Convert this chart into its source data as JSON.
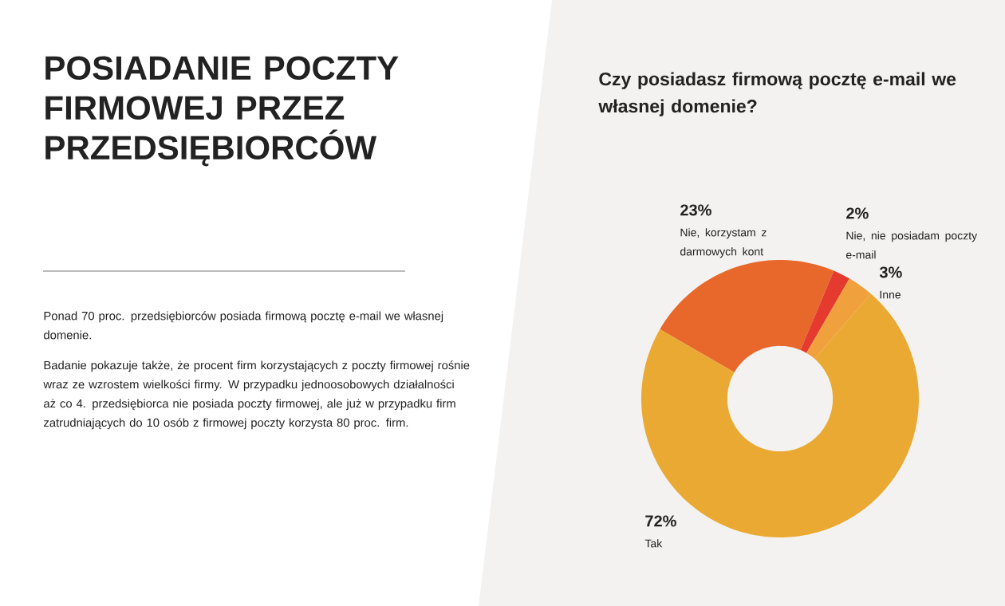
{
  "chart_data": {
    "type": "donut",
    "title": "POSIADANIE POCZTY FIRMOWEJ PRZEZ PRZEDSIĘBIORCÓW",
    "subtitle": "Czy posiadasz firmową pocztę e-mail we własnej domenie?",
    "annotations": [
      "Ponad 70 proc. przedsiębiorców posiada firmową pocztę e-mail we własnej domenie.",
      "Badanie pokazuje także, że procent firm korzystających z poczty firmowej rośnie wraz ze wzrostem wielkości firmy. W przypadku jednoosobowych działalności aż co 4. przedsiębiorca nie posiada poczty firmowej, ale już w przypadku firm zatrudniających do 10 osób z firmowej poczty korzysta 80 proc. firm."
    ],
    "categories": [
      "Nie, korzystam z darmowych kont",
      "Nie, nie posiadam poczty e-mail",
      "Inne",
      "Tak"
    ],
    "values": [
      23,
      2,
      3,
      72
    ],
    "value_labels": [
      "23%",
      "2%",
      "3%",
      "72%"
    ],
    "colors": [
      "#e8682c",
      "#e53b2f",
      "#f0a03c",
      "#eaa932"
    ]
  }
}
